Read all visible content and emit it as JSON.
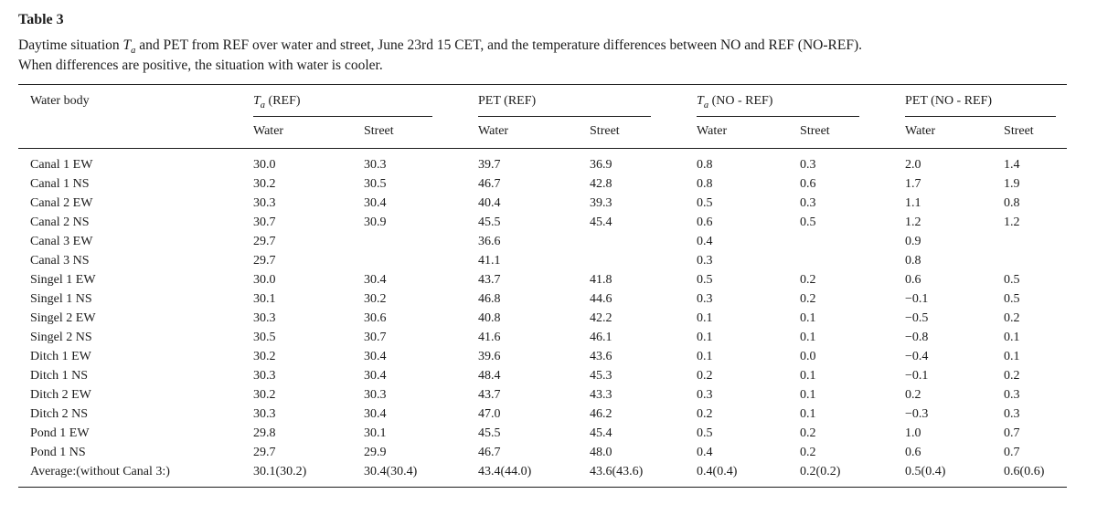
{
  "colors": {
    "background": "#ffffff",
    "text": "#1b1b1b",
    "rule": "#1c1c1c"
  },
  "table": {
    "title": "Table 3",
    "caption": {
      "lead": "Daytime situation ",
      "symbol": "T",
      "symbol_sub": "a",
      "line1_rest": " and PET from REF over water and street, June 23rd 15 CET, and the temperature differences between NO and REF (NO-REF).",
      "line2": "When differences are positive, the situation with water is cooler."
    },
    "corner_header": "Water body",
    "groups": [
      {
        "italic": "T",
        "sub": "a",
        "rest": " (REF)"
      },
      {
        "italic": "",
        "sub": "",
        "rest": "PET (REF)"
      },
      {
        "italic": "T",
        "sub": "a",
        "rest": " (NO - REF)"
      },
      {
        "italic": "",
        "sub": "",
        "rest": "PET (NO - REF)"
      }
    ],
    "subheaders": [
      "Water",
      "Street",
      "Water",
      "Street",
      "Water",
      "Street",
      "Water",
      "Street"
    ],
    "rows": [
      {
        "label": "Canal 1 EW",
        "values": [
          "30.0",
          "30.3",
          "39.7",
          "36.9",
          "0.8",
          "0.3",
          "2.0",
          "1.4"
        ]
      },
      {
        "label": "Canal 1 NS",
        "values": [
          "30.2",
          "30.5",
          "46.7",
          "42.8",
          "0.8",
          "0.6",
          "1.7",
          "1.9"
        ]
      },
      {
        "label": "Canal 2 EW",
        "values": [
          "30.3",
          "30.4",
          "40.4",
          "39.3",
          "0.5",
          "0.3",
          "1.1",
          "0.8"
        ]
      },
      {
        "label": "Canal 2 NS",
        "values": [
          "30.7",
          "30.9",
          "45.5",
          "45.4",
          "0.6",
          "0.5",
          "1.2",
          "1.2"
        ]
      },
      {
        "label": "Canal 3 EW",
        "values": [
          "29.7",
          "",
          "36.6",
          "",
          "0.4",
          "",
          "0.9",
          ""
        ]
      },
      {
        "label": "Canal 3 NS",
        "values": [
          "29.7",
          "",
          "41.1",
          "",
          "0.3",
          "",
          "0.8",
          ""
        ]
      },
      {
        "label": "Singel 1 EW",
        "values": [
          "30.0",
          "30.4",
          "43.7",
          "41.8",
          "0.5",
          "0.2",
          "0.6",
          "0.5"
        ]
      },
      {
        "label": "Singel 1 NS",
        "values": [
          "30.1",
          "30.2",
          "46.8",
          "44.6",
          "0.3",
          "0.2",
          "−0.1",
          "0.5"
        ]
      },
      {
        "label": "Singel 2 EW",
        "values": [
          "30.3",
          "30.6",
          "40.8",
          "42.2",
          "0.1",
          "0.1",
          "−0.5",
          "0.2"
        ]
      },
      {
        "label": "Singel 2 NS",
        "values": [
          "30.5",
          "30.7",
          "41.6",
          "46.1",
          "0.1",
          "0.1",
          "−0.8",
          "0.1"
        ]
      },
      {
        "label": "Ditch 1 EW",
        "values": [
          "30.2",
          "30.4",
          "39.6",
          "43.6",
          "0.1",
          "0.0",
          "−0.4",
          "0.1"
        ]
      },
      {
        "label": "Ditch 1 NS",
        "values": [
          "30.3",
          "30.4",
          "48.4",
          "45.3",
          "0.2",
          "0.1",
          "−0.1",
          "0.2"
        ]
      },
      {
        "label": "Ditch 2 EW",
        "values": [
          "30.2",
          "30.3",
          "43.7",
          "43.3",
          "0.3",
          "0.1",
          "0.2",
          "0.3"
        ]
      },
      {
        "label": "Ditch 2 NS",
        "values": [
          "30.3",
          "30.4",
          "47.0",
          "46.2",
          "0.2",
          "0.1",
          "−0.3",
          "0.3"
        ]
      },
      {
        "label": "Pond 1 EW",
        "values": [
          "29.8",
          "30.1",
          "45.5",
          "45.4",
          "0.5",
          "0.2",
          "1.0",
          "0.7"
        ]
      },
      {
        "label": "Pond 1 NS",
        "values": [
          "29.7",
          "29.9",
          "46.7",
          "48.0",
          "0.4",
          "0.2",
          "0.6",
          "0.7"
        ]
      },
      {
        "label": "Average:(without Canal 3:)",
        "values": [
          "30.1(30.2)",
          "30.4(30.4)",
          "43.4(44.0)",
          "43.6(43.6)",
          "0.4(0.4)",
          "0.2(0.2)",
          "0.5(0.4)",
          "0.6(0.6)"
        ]
      }
    ]
  }
}
